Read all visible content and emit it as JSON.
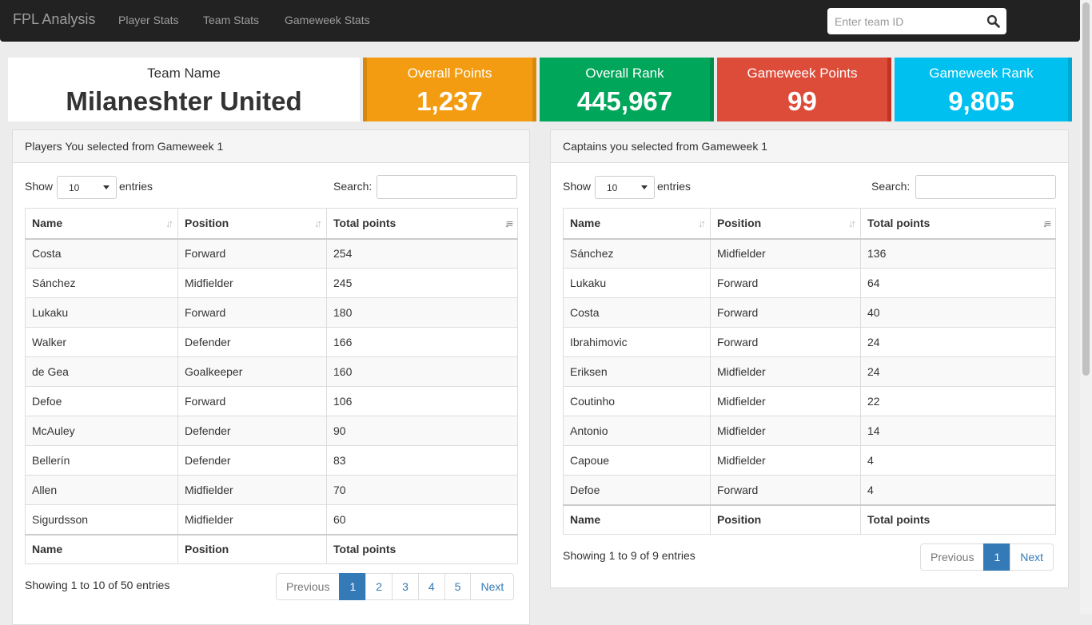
{
  "navbar": {
    "brand": "FPL Analysis",
    "links": [
      "Player Stats",
      "Team Stats",
      "Gameweek Stats"
    ],
    "search_placeholder": "Enter team ID"
  },
  "stats": {
    "team_label": "Team Name",
    "team_name": "Milaneshter United",
    "overall_points_label": "Overall Points",
    "overall_points": "1,237",
    "overall_rank_label": "Overall Rank",
    "overall_rank": "445,967",
    "gameweek_points_label": "Gameweek Points",
    "gameweek_points": "99",
    "gameweek_rank_label": "Gameweek Rank",
    "gameweek_rank": "9,805",
    "colors": {
      "orange": "#f39c12",
      "green": "#00a65a",
      "red": "#dd4b39",
      "cyan": "#00c0ef"
    }
  },
  "players_panel": {
    "title": "Players You selected from Gameweek 1",
    "show": "Show",
    "entries_value": "10",
    "entries": "entries",
    "search_label": "Search:",
    "columns": [
      "Name",
      "Position",
      "Total points"
    ],
    "rows": [
      [
        "Costa",
        "Forward",
        "254"
      ],
      [
        "Sánchez",
        "Midfielder",
        "245"
      ],
      [
        "Lukaku",
        "Forward",
        "180"
      ],
      [
        "Walker",
        "Defender",
        "166"
      ],
      [
        "de Gea",
        "Goalkeeper",
        "160"
      ],
      [
        "Defoe",
        "Forward",
        "106"
      ],
      [
        "McAuley",
        "Defender",
        "90"
      ],
      [
        "Bellerín",
        "Defender",
        "83"
      ],
      [
        "Allen",
        "Midfielder",
        "70"
      ],
      [
        "Sigurdsson",
        "Midfielder",
        "60"
      ]
    ],
    "info": "Showing 1 to 10 of 50 entries",
    "pagination": [
      "Previous",
      "1",
      "2",
      "3",
      "4",
      "5",
      "Next"
    ]
  },
  "captains_panel": {
    "title": "Captains you selected from Gameweek 1",
    "show": "Show",
    "entries_value": "10",
    "entries": "entries",
    "search_label": "Search:",
    "columns": [
      "Name",
      "Position",
      "Total points"
    ],
    "rows": [
      [
        "Sánchez",
        "Midfielder",
        "136"
      ],
      [
        "Lukaku",
        "Forward",
        "64"
      ],
      [
        "Costa",
        "Forward",
        "40"
      ],
      [
        "Ibrahimovic",
        "Forward",
        "24"
      ],
      [
        "Eriksen",
        "Midfielder",
        "24"
      ],
      [
        "Coutinho",
        "Midfielder",
        "22"
      ],
      [
        "Antonio",
        "Midfielder",
        "14"
      ],
      [
        "Capoue",
        "Midfielder",
        "4"
      ],
      [
        "Defoe",
        "Forward",
        "4"
      ]
    ],
    "info": "Showing 1 to 9 of 9 entries",
    "pagination": [
      "Previous",
      "1",
      "Next"
    ]
  }
}
